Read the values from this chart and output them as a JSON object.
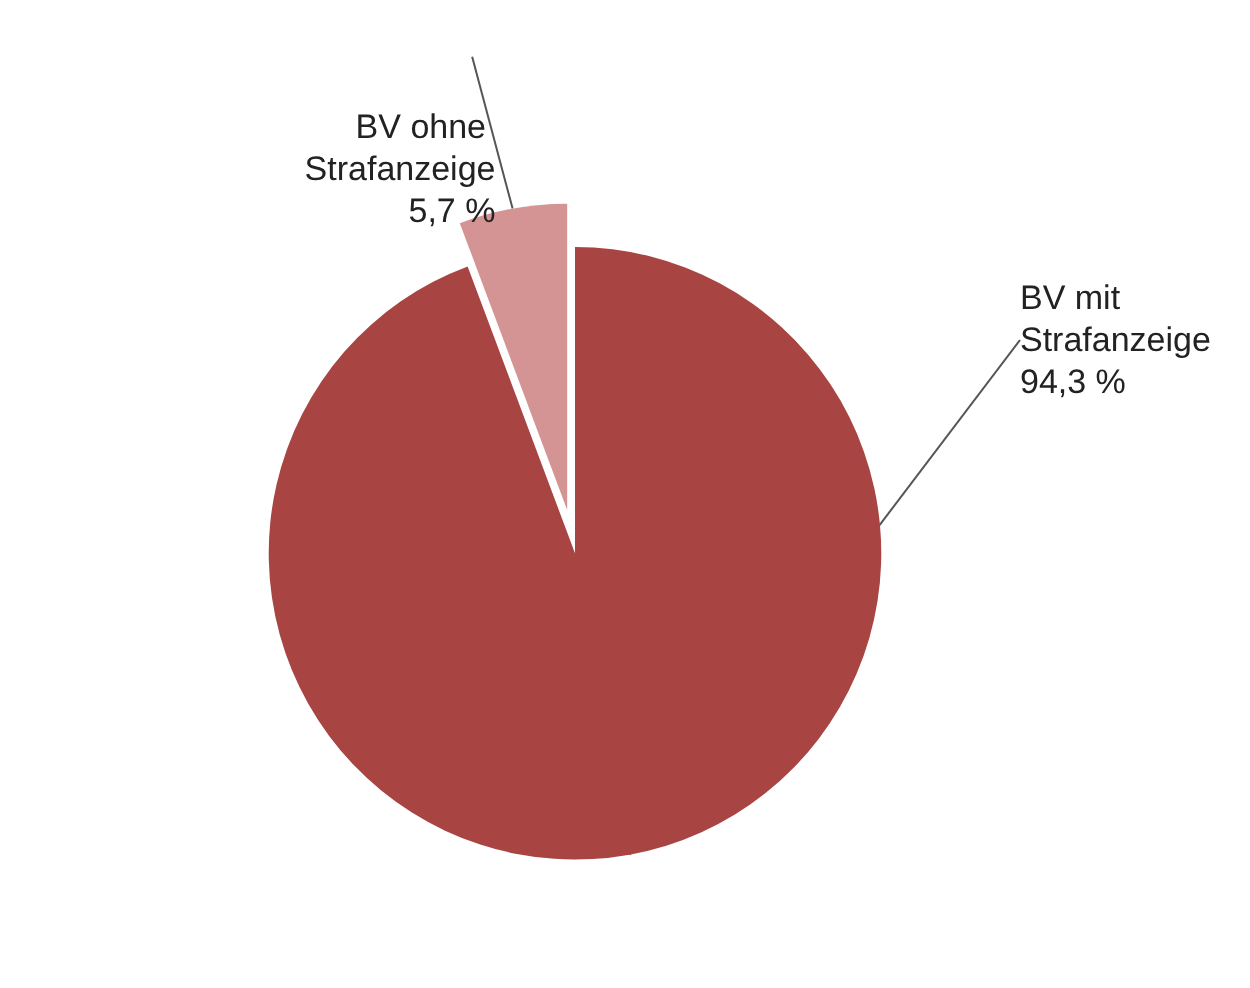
{
  "chart_data": {
    "type": "pie",
    "categories": [
      "BV mit Strafanzeige",
      "BV ohne Strafanzeige"
    ],
    "values": [
      94.3,
      5.7
    ],
    "colors": [
      "#a84442",
      "#d49494"
    ],
    "value_labels": [
      "94,3 %",
      "5,7 %"
    ],
    "legend": false
  }
}
